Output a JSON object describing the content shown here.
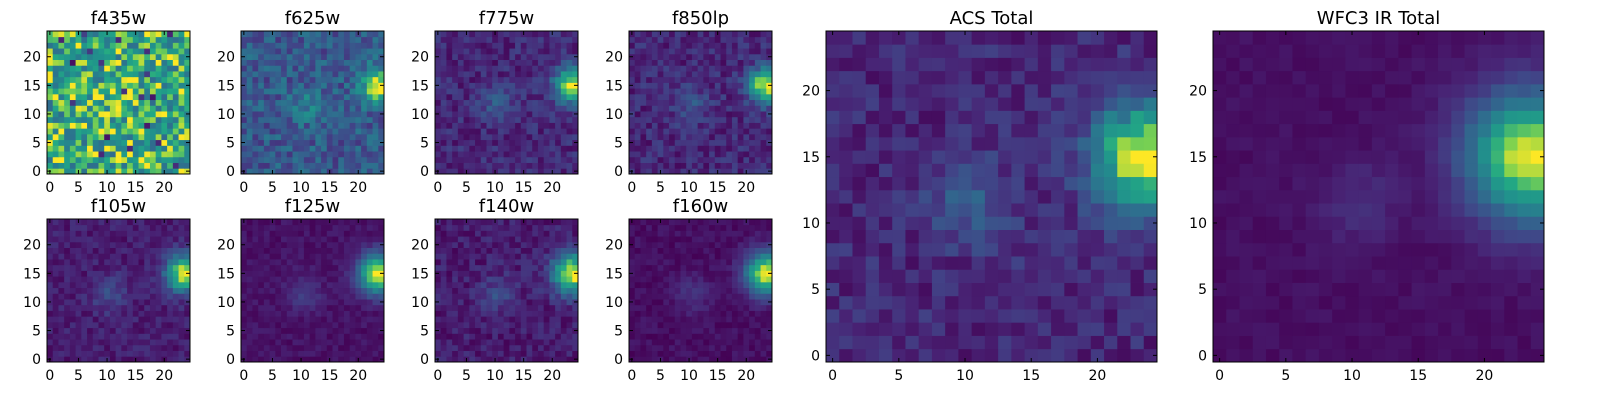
{
  "chart_data": [
    {
      "type": "heatmap",
      "title": "f435w",
      "colormap": "viridis",
      "x_ticks": [
        0,
        5,
        10,
        15,
        20
      ],
      "y_ticks": [
        0,
        5,
        10,
        15,
        20
      ],
      "xlim": [
        -0.5,
        24.5
      ],
      "ylim": [
        -0.5,
        24.5
      ],
      "grid_size": [
        25,
        25
      ],
      "pattern": "noise",
      "source": [
        23.5,
        15
      ],
      "value_range": [
        0,
        1
      ],
      "grid": false,
      "legend": "none"
    },
    {
      "type": "heatmap",
      "title": "f625w",
      "colormap": "viridis",
      "x_ticks": [
        0,
        5,
        10,
        15,
        20
      ],
      "y_ticks": [
        0,
        5,
        10,
        15,
        20
      ],
      "xlim": [
        -0.5,
        24.5
      ],
      "ylim": [
        -0.5,
        24.5
      ],
      "grid_size": [
        25,
        25
      ],
      "pattern": "source",
      "source": [
        23.5,
        15
      ],
      "value_range": [
        0,
        1
      ],
      "grid": false,
      "legend": "none"
    },
    {
      "type": "heatmap",
      "title": "f775w",
      "colormap": "viridis",
      "x_ticks": [
        0,
        5,
        10,
        15,
        20
      ],
      "y_ticks": [
        0,
        5,
        10,
        15,
        20
      ],
      "xlim": [
        -0.5,
        24.5
      ],
      "ylim": [
        -0.5,
        24.5
      ],
      "grid_size": [
        25,
        25
      ],
      "pattern": "source",
      "source": [
        23.5,
        15
      ],
      "value_range": [
        0,
        1
      ],
      "grid": false,
      "legend": "none"
    },
    {
      "type": "heatmap",
      "title": "f850lp",
      "colormap": "viridis",
      "x_ticks": [
        0,
        5,
        10,
        15,
        20
      ],
      "y_ticks": [
        0,
        5,
        10,
        15,
        20
      ],
      "xlim": [
        -0.5,
        24.5
      ],
      "ylim": [
        -0.5,
        24.5
      ],
      "grid_size": [
        25,
        25
      ],
      "pattern": "source",
      "source": [
        23.5,
        15
      ],
      "value_range": [
        0,
        1
      ],
      "grid": false,
      "legend": "none"
    },
    {
      "type": "heatmap",
      "title": "f105w",
      "colormap": "viridis",
      "x_ticks": [
        0,
        5,
        10,
        15,
        20
      ],
      "y_ticks": [
        0,
        5,
        10,
        15,
        20
      ],
      "xlim": [
        -0.5,
        24.5
      ],
      "ylim": [
        -0.5,
        24.5
      ],
      "grid_size": [
        25,
        25
      ],
      "pattern": "source",
      "source": [
        23.5,
        15
      ],
      "value_range": [
        0,
        1
      ],
      "grid": false,
      "legend": "none"
    },
    {
      "type": "heatmap",
      "title": "f125w",
      "colormap": "viridis",
      "x_ticks": [
        0,
        5,
        10,
        15,
        20
      ],
      "y_ticks": [
        0,
        5,
        10,
        15,
        20
      ],
      "xlim": [
        -0.5,
        24.5
      ],
      "ylim": [
        -0.5,
        24.5
      ],
      "grid_size": [
        25,
        25
      ],
      "pattern": "source",
      "source": [
        23.5,
        15
      ],
      "value_range": [
        0,
        1
      ],
      "grid": false,
      "legend": "none"
    },
    {
      "type": "heatmap",
      "title": "f140w",
      "colormap": "viridis",
      "x_ticks": [
        0,
        5,
        10,
        15,
        20
      ],
      "y_ticks": [
        0,
        5,
        10,
        15,
        20
      ],
      "xlim": [
        -0.5,
        24.5
      ],
      "ylim": [
        -0.5,
        24.5
      ],
      "grid_size": [
        25,
        25
      ],
      "pattern": "source",
      "source": [
        23.5,
        15
      ],
      "value_range": [
        0,
        1
      ],
      "grid": false,
      "legend": "none"
    },
    {
      "type": "heatmap",
      "title": "f160w",
      "colormap": "viridis",
      "x_ticks": [
        0,
        5,
        10,
        15,
        20
      ],
      "y_ticks": [
        0,
        5,
        10,
        15,
        20
      ],
      "xlim": [
        -0.5,
        24.5
      ],
      "ylim": [
        -0.5,
        24.5
      ],
      "grid_size": [
        25,
        25
      ],
      "pattern": "source",
      "source": [
        23.5,
        15
      ],
      "value_range": [
        0,
        1
      ],
      "grid": false,
      "legend": "none"
    },
    {
      "type": "heatmap",
      "title": "ACS Total",
      "colormap": "viridis",
      "x_ticks": [
        0,
        5,
        10,
        15,
        20
      ],
      "y_ticks": [
        0,
        5,
        10,
        15,
        20
      ],
      "xlim": [
        -0.5,
        24.5
      ],
      "ylim": [
        -0.5,
        24.5
      ],
      "grid_size": [
        25,
        25
      ],
      "pattern": "source",
      "source": [
        23.5,
        15
      ],
      "value_range": [
        0,
        1
      ],
      "grid": false,
      "legend": "none"
    },
    {
      "type": "heatmap",
      "title": "WFC3 IR Total",
      "colormap": "viridis",
      "x_ticks": [
        0,
        5,
        10,
        15,
        20
      ],
      "y_ticks": [
        0,
        5,
        10,
        15,
        20
      ],
      "xlim": [
        -0.5,
        24.5
      ],
      "ylim": [
        -0.5,
        24.5
      ],
      "grid_size": [
        25,
        25
      ],
      "pattern": "source",
      "source": [
        23.5,
        15
      ],
      "value_range": [
        0,
        1
      ],
      "grid": false,
      "legend": "none"
    }
  ]
}
